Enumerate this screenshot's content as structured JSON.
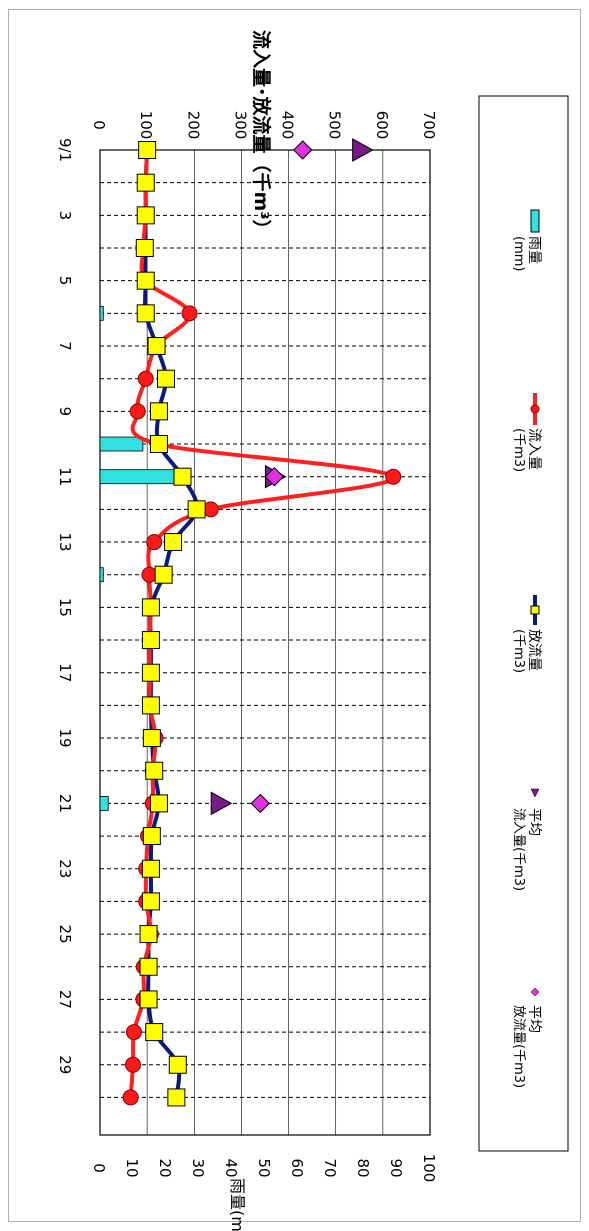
{
  "chart_data": {
    "type": "bar-line",
    "orientation": "rotated-90",
    "title": "流入量･放流量（千m³）",
    "flow_axis": {
      "range": [
        0,
        700
      ],
      "ticks": [
        "0",
        "100",
        "200",
        "300",
        "400",
        "500",
        "600",
        "700"
      ]
    },
    "rain_axis": {
      "label": "雨量(mm)",
      "range": [
        0,
        100
      ],
      "ticks": [
        "0",
        "10",
        "20",
        "30",
        "40",
        "50",
        "60",
        "70",
        "80",
        "90",
        "100"
      ]
    },
    "day_ticks": [
      "9/1",
      "3",
      "5",
      "7",
      "9",
      "11",
      "13",
      "15",
      "17",
      "19",
      "21",
      "23",
      "25",
      "27",
      "29"
    ],
    "days": [
      1,
      2,
      3,
      4,
      5,
      6,
      7,
      8,
      9,
      10,
      11,
      12,
      13,
      14,
      15,
      16,
      17,
      18,
      19,
      20,
      21,
      22,
      23,
      24,
      25,
      26,
      27,
      28,
      29,
      30
    ],
    "series": [
      {
        "name": "雨量",
        "sub": "(mm)",
        "kind": "bar",
        "color": "#33e0e0",
        "values": [
          0,
          0,
          0,
          0,
          0,
          1,
          0,
          0,
          0,
          13,
          24,
          0,
          0,
          1,
          0,
          0,
          0,
          0,
          0,
          0,
          2.5,
          0,
          0,
          0,
          0,
          0,
          0,
          0,
          0,
          0
        ]
      },
      {
        "name": "流入量",
        "sub": "(千m3)",
        "kind": "line",
        "color": "#ff2020",
        "marker": "circle",
        "values": [
          100,
          97,
          97,
          92,
          97,
          190,
          120,
          97,
          80,
          123,
          622,
          235,
          115,
          105,
          108,
          105,
          106,
          106,
          118,
          112,
          112,
          102,
          98,
          98,
          108,
          93,
          92,
          72,
          70,
          65
        ]
      },
      {
        "name": "放流量",
        "sub": "(千m3)",
        "kind": "line",
        "color": "#0a1a80",
        "marker": "square",
        "values": [
          100,
          97,
          97,
          95,
          97,
          97,
          120,
          140,
          125,
          125,
          175,
          205,
          155,
          135,
          108,
          108,
          108,
          108,
          110,
          115,
          125,
          110,
          108,
          108,
          103,
          103,
          103,
          115,
          165,
          162
        ]
      },
      {
        "name": "平均",
        "sub": "流入量(千m3)",
        "kind": "point",
        "color": "#7a1a8a",
        "marker": "triangle",
        "points": [
          {
            "day": 1,
            "value": 555
          },
          {
            "day": 21,
            "value": 255
          },
          {
            "day": 11,
            "value": 370
          }
        ]
      },
      {
        "name": "平均",
        "sub": "放流量(千m3)",
        "kind": "point",
        "color": "#e030e0",
        "marker": "diamond",
        "points": [
          {
            "day": 1,
            "value": 430
          },
          {
            "day": 21,
            "value": 340
          },
          {
            "day": 11,
            "value": 370
          }
        ]
      }
    ],
    "legend_position": "right"
  }
}
